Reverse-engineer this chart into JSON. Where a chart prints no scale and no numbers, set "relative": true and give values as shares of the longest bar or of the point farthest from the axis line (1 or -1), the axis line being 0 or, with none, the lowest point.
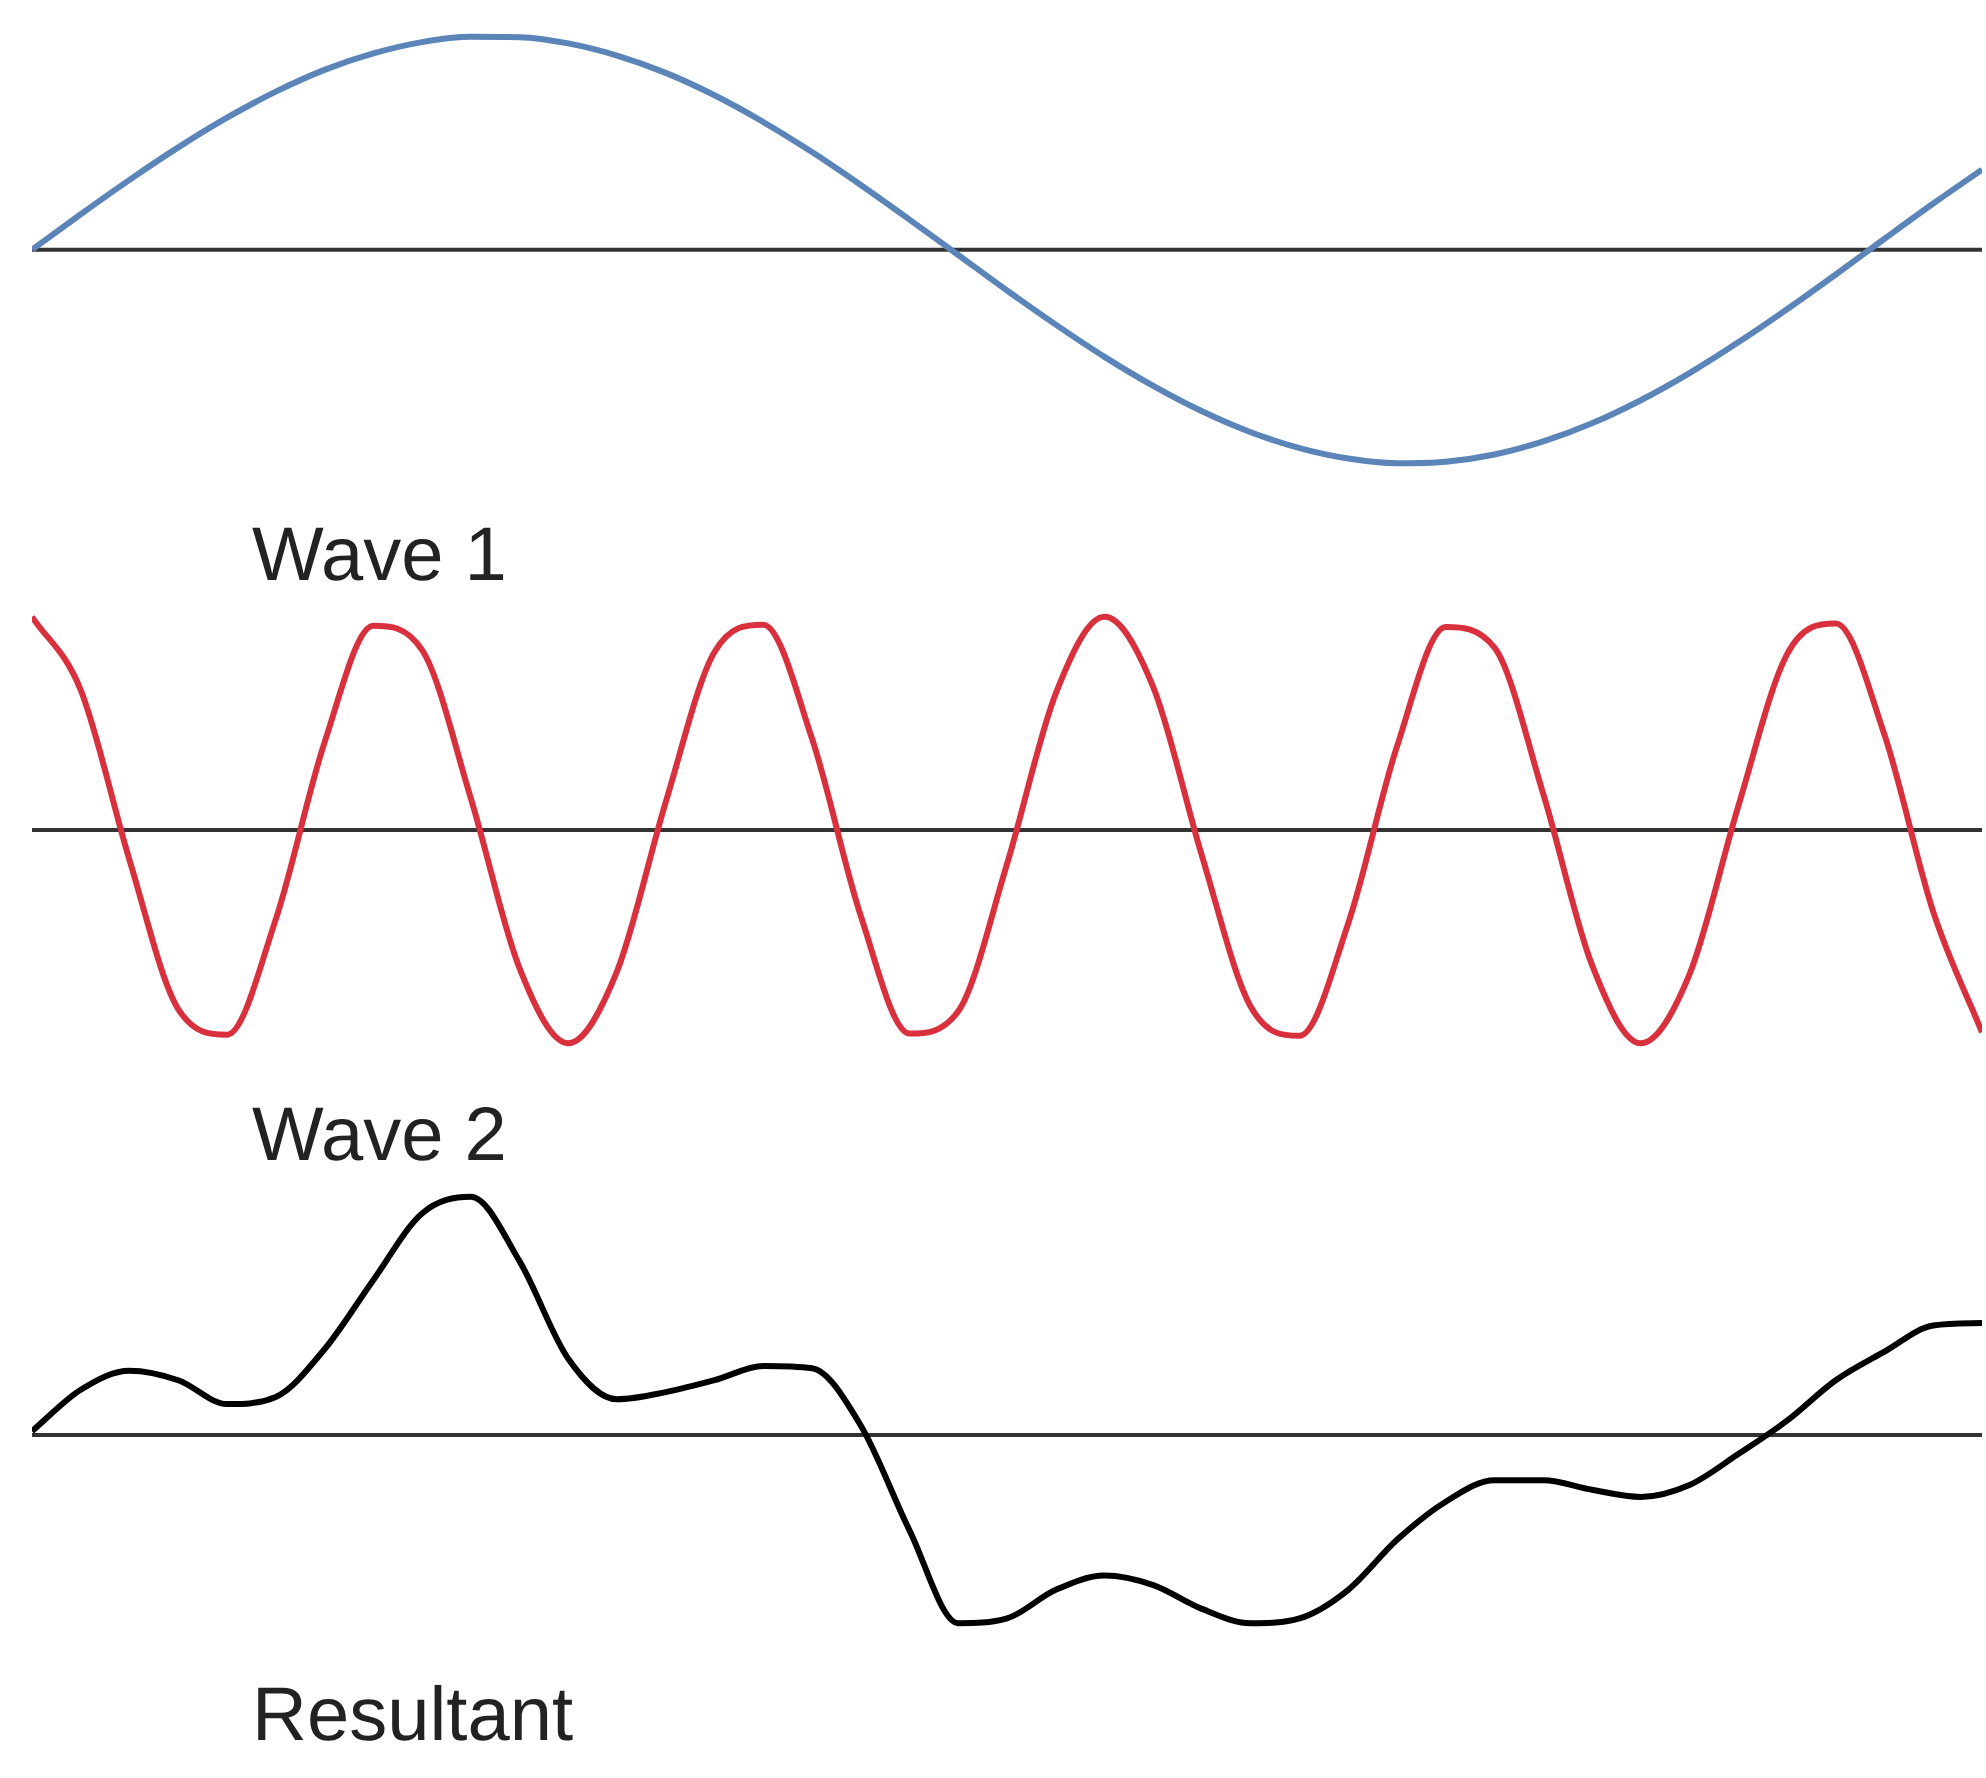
{
  "chart_data": [
    {
      "type": "line",
      "relative": true,
      "legend": false,
      "categories": [
        null,
        null,
        null,
        null,
        null,
        null,
        null,
        null,
        null,
        null,
        null,
        null,
        null,
        null,
        null,
        null,
        null,
        null,
        null,
        null,
        null,
        null,
        null,
        null,
        null,
        null,
        null,
        null,
        null,
        null,
        null,
        null,
        null,
        null,
        null,
        null,
        null,
        null,
        null,
        null,
        null
      ],
      "series": [
        {
          "name": "Wave 1",
          "color": "#5b84b8",
          "values": [
            0,
            0.166,
            0.327,
            0.479,
            0.618,
            0.74,
            0.842,
            0.919,
            0.972,
            0.997,
            0.995,
            0.966,
            0.909,
            0.828,
            0.723,
            0.598,
            0.457,
            0.303,
            0.141,
            -0.025,
            -0.191,
            -0.351,
            -0.502,
            -0.638,
            -0.757,
            -0.855,
            -0.929,
            -0.978,
            -1,
            -0.993,
            -0.959,
            -0.898,
            -0.813,
            -0.705,
            -0.578,
            -0.434,
            -0.279,
            -0.116,
            0.051,
            0.216,
            0.375
          ]
        }
      ]
    },
    {
      "type": "line",
      "relative": true,
      "legend": false,
      "categories": [
        null,
        null,
        null,
        null,
        null,
        null,
        null,
        null,
        null,
        null,
        null,
        null,
        null,
        null,
        null,
        null,
        null,
        null,
        null,
        null,
        null,
        null,
        null,
        null,
        null,
        null,
        null,
        null,
        null,
        null,
        null,
        null,
        null,
        null,
        null,
        null,
        null,
        null,
        null,
        null,
        null
      ],
      "series": [
        {
          "name": "Wave 2",
          "color": "#d9303e",
          "values": [
            1,
            0.656,
            -0.141,
            -0.84,
            -0.96,
            -0.419,
            0.41,
            0.958,
            0.845,
            0.15,
            -0.648,
            -1,
            -0.663,
            0.131,
            0.835,
            0.963,
            0.429,
            -0.402,
            -0.955,
            -0.85,
            -0.16,
            0.64,
            1,
            0.67,
            -0.122,
            -0.829,
            -0.965,
            -0.437,
            0.392,
            0.952,
            0.855,
            0.169,
            -0.633,
            -1,
            -0.677,
            0.111,
            0.824,
            0.968,
            0.446,
            -0.384,
            -0.949
          ]
        }
      ]
    },
    {
      "type": "line",
      "relative": true,
      "legend": false,
      "categories": [
        null,
        null,
        null,
        null,
        null,
        null,
        null,
        null,
        null,
        null,
        null,
        null,
        null,
        null,
        null,
        null,
        null,
        null,
        null,
        null,
        null,
        null,
        null,
        null,
        null,
        null,
        null,
        null,
        null,
        null,
        null,
        null,
        null,
        null,
        null,
        null,
        null,
        null,
        null,
        null,
        null
      ],
      "series": [
        {
          "name": "Resultant",
          "color": "#000000",
          "values": [
            0.016,
            0.19,
            0.27,
            0.23,
            0.13,
            0.16,
            0.36,
            0.65,
            0.93,
            1,
            0.73,
            0.32,
            0.15,
            0.18,
            0.23,
            0.29,
            0.28,
            0.04,
            -0.4,
            -0.79,
            -0.77,
            -0.65,
            -0.59,
            -0.63,
            -0.73,
            -0.79,
            -0.77,
            -0.65,
            -0.44,
            -0.28,
            -0.19,
            -0.19,
            -0.23,
            -0.26,
            -0.21,
            -0.08,
            0.06,
            0.23,
            0.35,
            0.46,
            0.47
          ]
        }
      ]
    }
  ]
}
